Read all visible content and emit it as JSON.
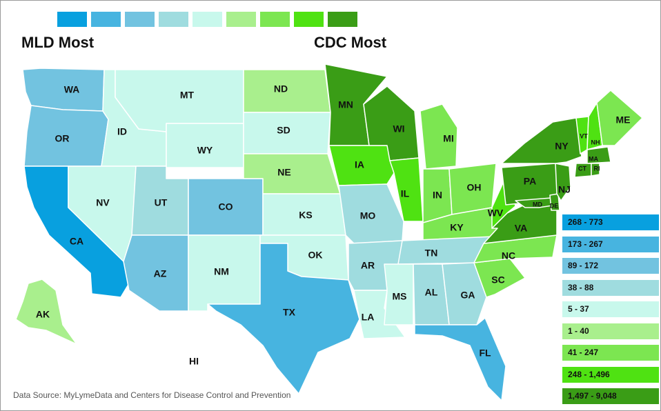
{
  "labels": {
    "mld": "MLD Most",
    "cdc": "CDC Most"
  },
  "scale_colors": [
    "#08a0df",
    "#47b4e0",
    "#72c3e0",
    "#9fdcdf",
    "#c8f8ec",
    "#a9ef8d",
    "#7ce651",
    "#4fe212",
    "#3a9d16"
  ],
  "legend": [
    {
      "label": "268 - 773",
      "color": "#08a0df"
    },
    {
      "label": "173 - 267",
      "color": "#47b4e0"
    },
    {
      "label": "89 - 172",
      "color": "#72c3e0"
    },
    {
      "label": "38 - 88",
      "color": "#9fdcdf"
    },
    {
      "label": "5 - 37",
      "color": "#c8f8ec"
    },
    {
      "label": "1 - 40",
      "color": "#a9ef8d"
    },
    {
      "label": "41 - 247",
      "color": "#7ce651"
    },
    {
      "label": "248 - 1,496",
      "color": "#4fe212"
    },
    {
      "label": "1,497 - 9,048",
      "color": "#3a9d16"
    }
  ],
  "states": [
    {
      "abbr": "WA",
      "class": 3
    },
    {
      "abbr": "OR",
      "class": 3
    },
    {
      "abbr": "CA",
      "class": 1
    },
    {
      "abbr": "ID",
      "class": 5
    },
    {
      "abbr": "NV",
      "class": 5
    },
    {
      "abbr": "MT",
      "class": 5
    },
    {
      "abbr": "WY",
      "class": 5
    },
    {
      "abbr": "UT",
      "class": 4
    },
    {
      "abbr": "AZ",
      "class": 3
    },
    {
      "abbr": "CO",
      "class": 3
    },
    {
      "abbr": "NM",
      "class": 5
    },
    {
      "abbr": "ND",
      "class": 6
    },
    {
      "abbr": "SD",
      "class": 5
    },
    {
      "abbr": "NE",
      "class": 6
    },
    {
      "abbr": "KS",
      "class": 5
    },
    {
      "abbr": "OK",
      "class": 5
    },
    {
      "abbr": "TX",
      "class": 2
    },
    {
      "abbr": "MN",
      "class": 9
    },
    {
      "abbr": "IA",
      "class": 8
    },
    {
      "abbr": "MO",
      "class": 4
    },
    {
      "abbr": "AR",
      "class": 4
    },
    {
      "abbr": "LA",
      "class": 5
    },
    {
      "abbr": "WI",
      "class": 9
    },
    {
      "abbr": "IL",
      "class": 8
    },
    {
      "abbr": "MI",
      "class": 7
    },
    {
      "abbr": "IN",
      "class": 7
    },
    {
      "abbr": "OH",
      "class": 7
    },
    {
      "abbr": "KY",
      "class": 7
    },
    {
      "abbr": "TN",
      "class": 4
    },
    {
      "abbr": "MS",
      "class": 5
    },
    {
      "abbr": "AL",
      "class": 4
    },
    {
      "abbr": "GA",
      "class": 4
    },
    {
      "abbr": "FL",
      "class": 2
    },
    {
      "abbr": "SC",
      "class": 7
    },
    {
      "abbr": "NC",
      "class": 7
    },
    {
      "abbr": "VA",
      "class": 9
    },
    {
      "abbr": "WV",
      "class": 8
    },
    {
      "abbr": "PA",
      "class": 9
    },
    {
      "abbr": "NY",
      "class": 9
    },
    {
      "abbr": "MD",
      "class": 9
    },
    {
      "abbr": "DE",
      "class": 9
    },
    {
      "abbr": "NJ",
      "class": 9
    },
    {
      "abbr": "VT",
      "class": 8
    },
    {
      "abbr": "NH",
      "class": 8
    },
    {
      "abbr": "ME",
      "class": 7
    },
    {
      "abbr": "MA",
      "class": 9
    },
    {
      "abbr": "CT",
      "class": 9
    },
    {
      "abbr": "RI",
      "class": 9
    },
    {
      "abbr": "AK",
      "class": 6
    },
    {
      "abbr": "HI",
      "class": 0
    }
  ],
  "source": "Data Source: MyLymeData and Centers for Disease Control and Prevention"
}
